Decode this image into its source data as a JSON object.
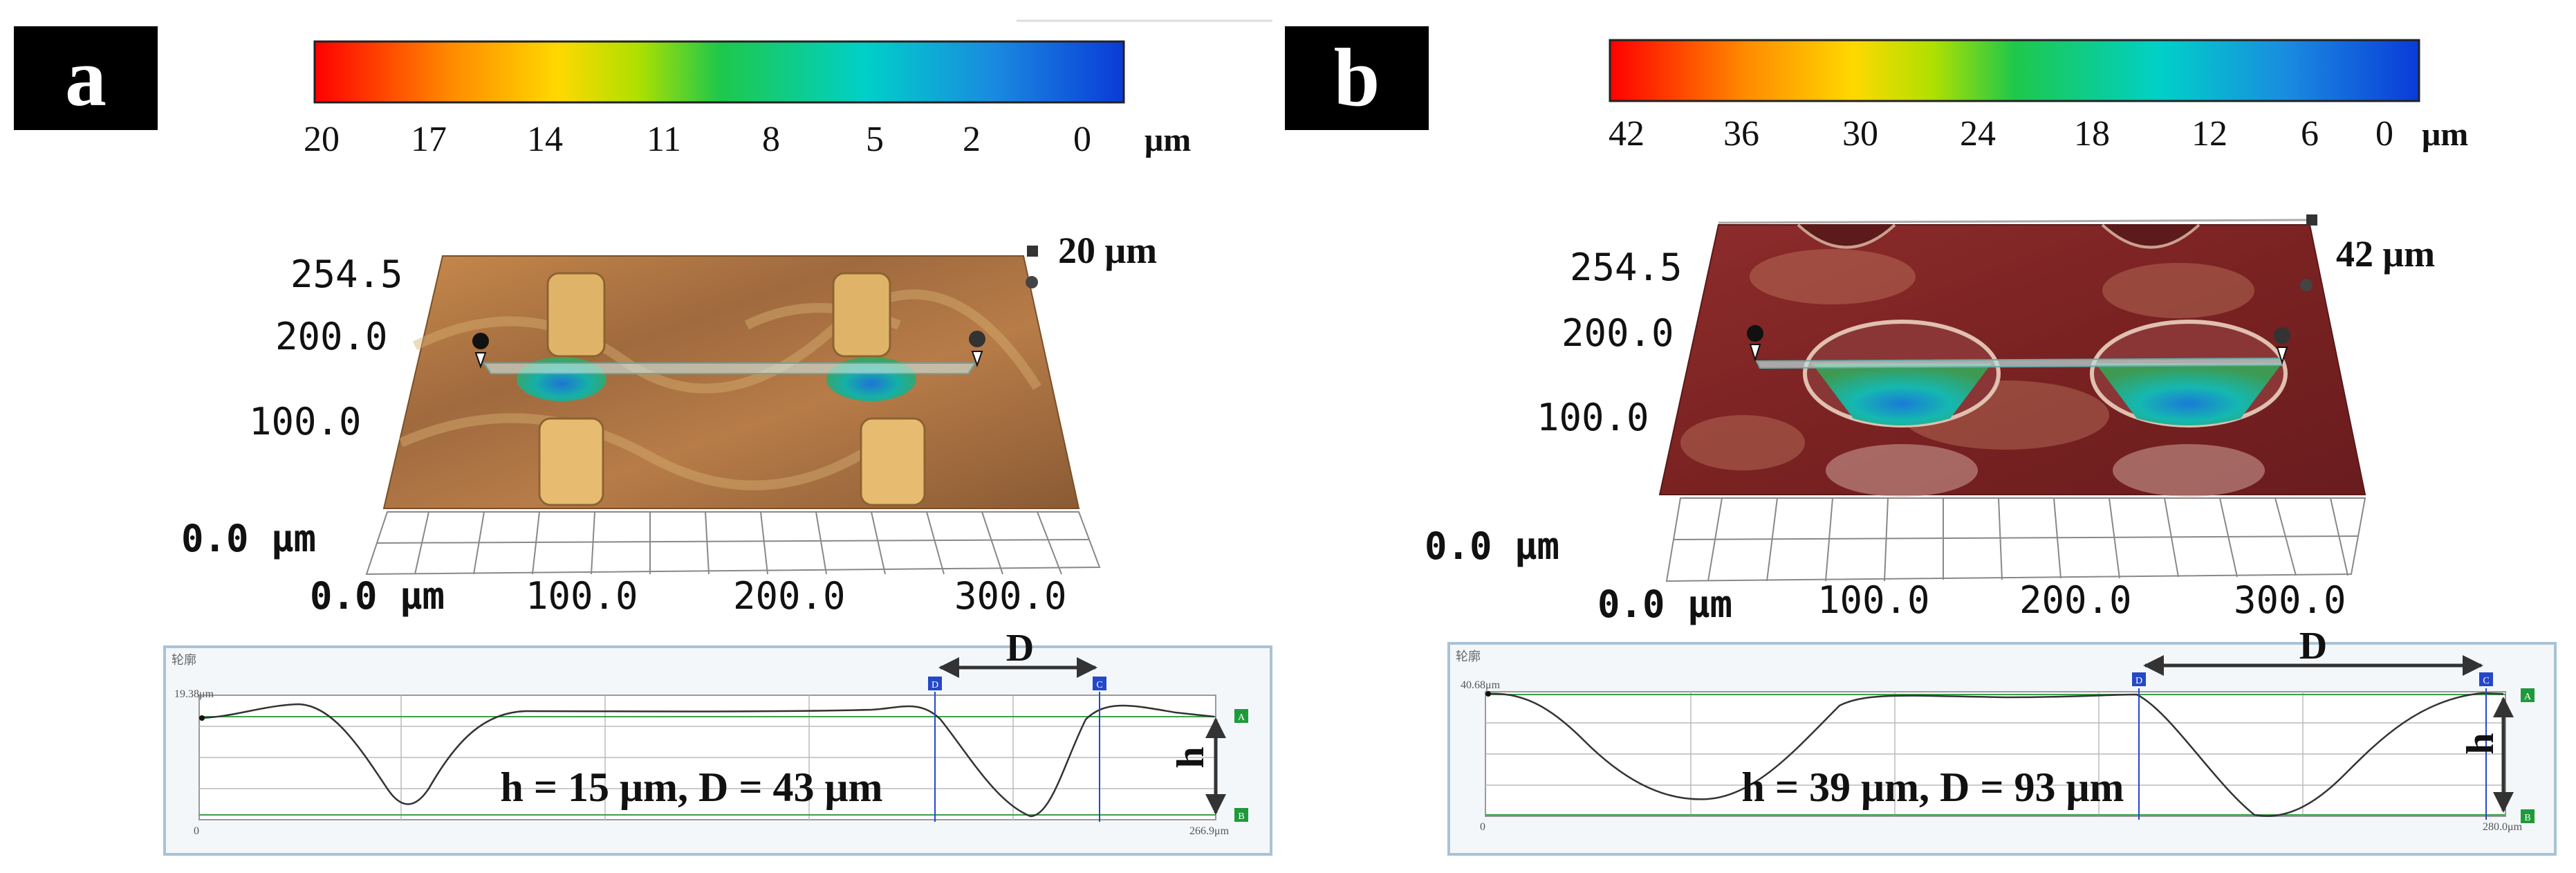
{
  "panels": [
    {
      "id": "a",
      "letter": "a",
      "colorbar_ticks": [
        "20",
        "17",
        "14",
        "11",
        "8",
        "5",
        "2",
        "0"
      ],
      "colorbar_unit": "μm",
      "z_max_label": "20  μm",
      "y_ticks": [
        "254.5",
        "200.0",
        "100.0"
      ],
      "origin_label": "0.0  μm",
      "x_ticks": [
        "0.0  μm",
        "100.0",
        "200.0",
        "300.0"
      ],
      "profile_title": "轮廓",
      "profile_top_label": "19.38μm",
      "profile_left_bottom": "0",
      "profile_right_bottom": "266.9μm",
      "marker_A": "A",
      "marker_B": "B",
      "marker_C": "C",
      "marker_D": "D",
      "dim_D": "D",
      "dim_h": "h",
      "annotation": "h = 15 μm, D = 43 μm"
    },
    {
      "id": "b",
      "letter": "b",
      "colorbar_ticks": [
        "42",
        "36",
        "30",
        "24",
        "18",
        "12",
        "6",
        "0"
      ],
      "colorbar_unit": "μm",
      "z_max_label": "42  μm",
      "y_ticks": [
        "254.5",
        "200.0",
        "100.0"
      ],
      "origin_label": "0.0  μm",
      "x_ticks": [
        "0.0  μm",
        "100.0",
        "200.0",
        "300.0"
      ],
      "profile_title": "轮廓",
      "profile_top_label": "40.68μm",
      "profile_left_bottom": "0",
      "profile_right_bottom": "280.0μm",
      "marker_A": "A",
      "marker_B": "B",
      "marker_C": "C",
      "marker_D": "D",
      "dim_D": "D",
      "dim_h": "h",
      "annotation": "h = 39 μm, D = 93 μm"
    }
  ],
  "colors": {
    "colorbar_stops": [
      "#ff0000",
      "#ff8c00",
      "#ffd800",
      "#aee000",
      "#1ec84a",
      "#00d0c8",
      "#1a8ae0",
      "#0a3bd8"
    ],
    "surface_a": "#a8703a",
    "surface_b": "#7e2424",
    "profile_line": "#333333",
    "marker_blue": "#2448c8",
    "marker_green": "#1f9a3a"
  }
}
